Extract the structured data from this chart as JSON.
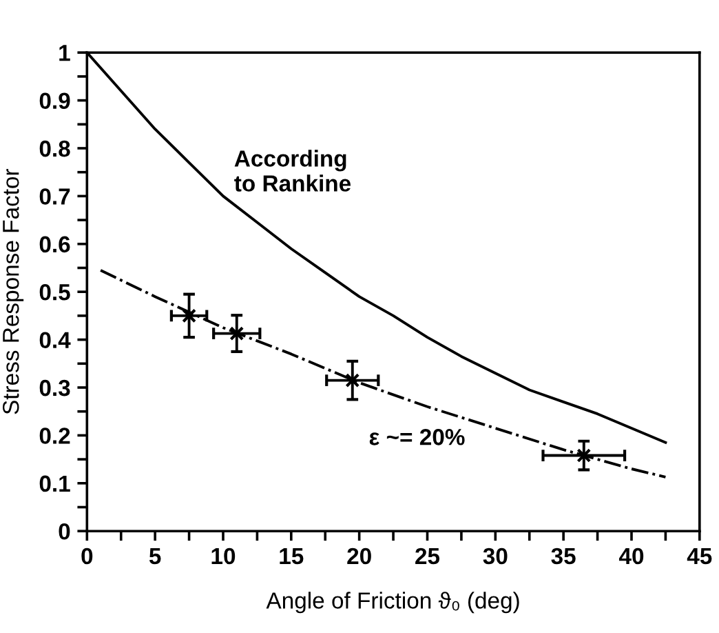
{
  "chart_data": {
    "type": "line",
    "xlabel": "Angle of Friction ϑ₀ (deg)",
    "ylabel": "Stress Response Factor",
    "xlim": [
      0,
      45
    ],
    "ylim": [
      0,
      1
    ],
    "xticks": [
      0,
      {
        "value": 2.5,
        "label": null
      },
      5,
      {
        "value": 7.5,
        "label": null
      },
      10,
      {
        "value": 12.5,
        "label": null
      },
      15,
      {
        "value": 17.5,
        "label": null
      },
      20,
      {
        "value": 22.5,
        "label": null
      },
      25,
      {
        "value": 27.5,
        "label": null
      },
      30,
      {
        "value": 32.5,
        "label": null
      },
      35,
      {
        "value": 37.5,
        "label": null
      },
      40,
      {
        "value": 42.5,
        "label": null
      },
      45
    ],
    "yticks": [
      0,
      {
        "value": 0.05,
        "label": null
      },
      0.1,
      {
        "value": 0.15,
        "label": null
      },
      0.2,
      {
        "value": 0.25,
        "label": null
      },
      0.3,
      {
        "value": 0.35,
        "label": null
      },
      0.4,
      {
        "value": 0.45,
        "label": null
      },
      0.5,
      {
        "value": 0.55,
        "label": null
      },
      0.6,
      {
        "value": 0.65,
        "label": null
      },
      0.7,
      {
        "value": 0.75,
        "label": null
      },
      0.8,
      {
        "value": 0.85,
        "label": null
      },
      0.9,
      {
        "value": 0.95,
        "label": null
      },
      1
    ],
    "grid": false,
    "legend": false,
    "annotations": [
      "According\nto Rankine",
      "ε ~= 20%"
    ],
    "series": [
      {
        "color": "#000000",
        "line_style": "solid",
        "x": [
          0,
          2.5,
          5,
          7.5,
          10,
          12.5,
          15,
          17.5,
          20,
          22.5,
          25,
          27.5,
          30,
          32.5,
          35,
          37.5,
          40,
          42.5
        ],
        "values": [
          1,
          0.92,
          0.84,
          0.77,
          0.7,
          0.645,
          0.59,
          0.54,
          0.49,
          0.45,
          0.405,
          0.365,
          0.33,
          0.295,
          0.27,
          0.245,
          0.215,
          0.185
        ]
      },
      {
        "type": "line",
        "color": "#000000",
        "line_style": "dashdot",
        "x": [
          1,
          5,
          10,
          15,
          20,
          25,
          30,
          35,
          40,
          42.5
        ],
        "values": [
          0.545,
          0.49,
          0.425,
          0.37,
          0.31,
          0.26,
          0.215,
          0.17,
          0.13,
          0.113
        ]
      },
      {
        "type": "scatter",
        "color": "#000000",
        "marker": "cross",
        "x": [
          7.5,
          11,
          19.5,
          36.5
        ],
        "values": [
          0.45,
          0.413,
          0.315,
          0.158
        ],
        "errors": [
          0.045,
          0.038,
          0.04,
          0.03
        ],
        "xerrors": [
          1.3,
          1.7,
          1.9,
          3
        ]
      }
    ]
  }
}
